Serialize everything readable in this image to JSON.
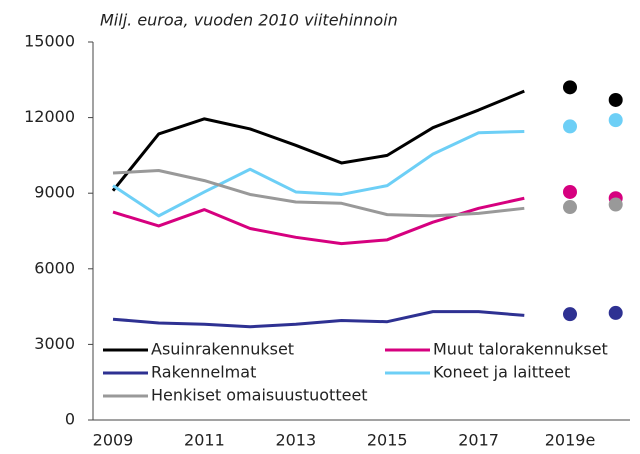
{
  "chart_data": {
    "type": "line",
    "title": "Milj. euroa, vuoden 2010 viitehinnoin",
    "categories": [
      "2009",
      null,
      "2011",
      null,
      "2013",
      null,
      "2015",
      null,
      "2017",
      null,
      "2019e",
      null
    ],
    "series": [
      {
        "name": "Asuinrakennukset",
        "color": "#000000",
        "values": [
          9100,
          11350,
          11950,
          11550,
          10900,
          10200,
          10500,
          11600,
          12300,
          13050,
          null,
          null
        ],
        "estimate_values": [
          null,
          null,
          null,
          null,
          null,
          null,
          null,
          null,
          null,
          null,
          13200,
          12700
        ]
      },
      {
        "name": "Muut talorakennukset",
        "color": "#d6007f",
        "values": [
          8250,
          7700,
          8350,
          7600,
          7250,
          7000,
          7150,
          7850,
          8400,
          8800,
          null,
          null
        ],
        "estimate_values": [
          null,
          null,
          null,
          null,
          null,
          null,
          null,
          null,
          null,
          null,
          9050,
          8800
        ]
      },
      {
        "name": "Rakennelmat",
        "color": "#2e3192",
        "values": [
          4000,
          3850,
          3800,
          3700,
          3800,
          3950,
          3900,
          4300,
          4300,
          4150,
          null,
          null
        ],
        "estimate_values": [
          null,
          null,
          null,
          null,
          null,
          null,
          null,
          null,
          null,
          null,
          4200,
          4250
        ]
      },
      {
        "name": "Koneet ja laitteet",
        "color": "#6dcff6",
        "values": [
          9300,
          8100,
          9050,
          9950,
          9050,
          8950,
          9300,
          10550,
          11400,
          11450,
          null,
          null
        ],
        "estimate_values": [
          null,
          null,
          null,
          null,
          null,
          null,
          null,
          null,
          null,
          null,
          11650,
          11900
        ]
      },
      {
        "name": "Henkiset omaisuustuotteet",
        "color": "#999999",
        "values": [
          9800,
          9900,
          9500,
          8950,
          8650,
          8600,
          8150,
          8100,
          8200,
          8400,
          null,
          null
        ],
        "estimate_values": [
          null,
          null,
          null,
          null,
          null,
          null,
          null,
          null,
          null,
          null,
          8450,
          8550
        ]
      }
    ],
    "ylim": [
      0,
      15000
    ],
    "yticks": [
      0,
      3000,
      6000,
      9000,
      12000,
      15000
    ]
  }
}
